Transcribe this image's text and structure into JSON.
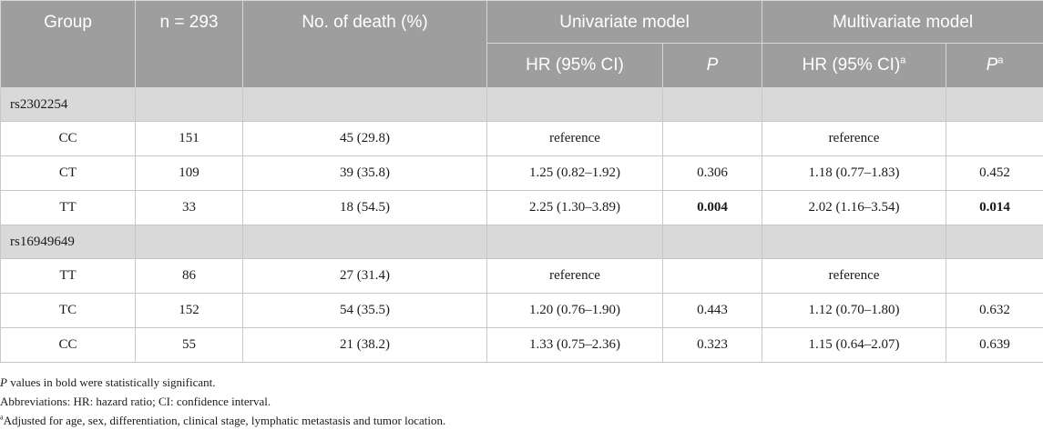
{
  "table": {
    "headers": {
      "group": "Group",
      "n": "n = 293",
      "deaths": "No. of death (%)",
      "univariate": "Univariate model",
      "multivariate": "Multivariate model",
      "hr": "HR (95% CI)",
      "p": "P",
      "hr_multi": "HR (95% CI)",
      "hr_multi_sup": "a",
      "p_multi": "P",
      "p_multi_sup": "a"
    },
    "sections": [
      {
        "label": "rs2302254",
        "rows": [
          {
            "group": "CC",
            "n": "151",
            "deaths": "45 (29.8)",
            "uni_hr": "reference",
            "uni_p": "",
            "multi_hr": "reference",
            "multi_p": ""
          },
          {
            "group": "CT",
            "n": "109",
            "deaths": "39 (35.8)",
            "uni_hr": "1.25 (0.82–1.92)",
            "uni_p": "0.306",
            "multi_hr": "1.18 (0.77–1.83)",
            "multi_p": "0.452"
          },
          {
            "group": "TT",
            "n": "33",
            "deaths": "18 (54.5)",
            "uni_hr": "2.25 (1.30–3.89)",
            "uni_p": "0.004",
            "multi_hr": "2.02 (1.16–3.54)",
            "multi_p": "0.014"
          }
        ]
      },
      {
        "label": "rs16949649",
        "rows": [
          {
            "group": "TT",
            "n": "86",
            "deaths": "27 (31.4)",
            "uni_hr": "reference",
            "uni_p": "",
            "multi_hr": "reference",
            "multi_p": ""
          },
          {
            "group": "TC",
            "n": "152",
            "deaths": "54 (35.5)",
            "uni_hr": "1.20 (0.76–1.90)",
            "uni_p": "0.443",
            "multi_hr": "1.12 (0.70–1.80)",
            "multi_p": "0.632"
          },
          {
            "group": "CC",
            "n": "55",
            "deaths": "21 (38.2)",
            "uni_hr": "1.33 (0.75–2.36)",
            "uni_p": "0.323",
            "multi_hr": "1.15 (0.64–2.07)",
            "multi_p": "0.639"
          }
        ]
      }
    ]
  },
  "notes": {
    "note1_p": "P",
    "note1_rest": " values in bold were statistically significant.",
    "note2": "Abbreviations: HR: hazard ratio; CI: confidence interval.",
    "note3_sup": "a",
    "note3_rest": "Adjusted for age, sex, differentiation, clinical stage, lymphatic metastasis and tumor location."
  }
}
